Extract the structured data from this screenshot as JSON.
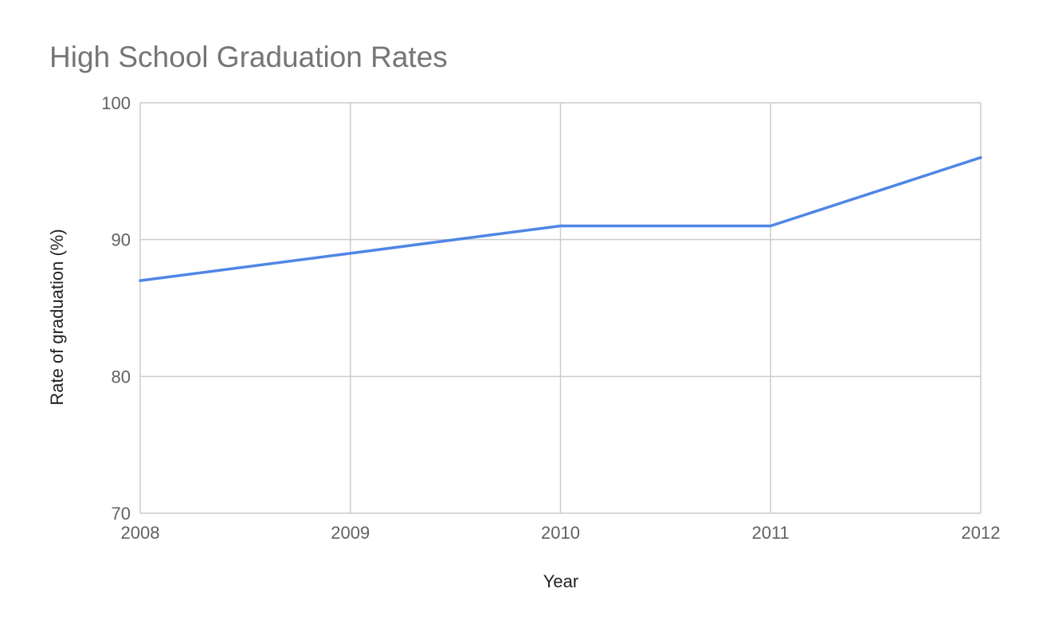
{
  "chart_data": {
    "type": "line",
    "title": "High School Graduation Rates",
    "xlabel": "Year",
    "ylabel": "Rate of graduation (%)",
    "x": [
      "2008",
      "2009",
      "2010",
      "2011",
      "2012"
    ],
    "series": [
      {
        "values": [
          87,
          89,
          91,
          91,
          96
        ],
        "color": "#4f86e6"
      }
    ],
    "ylim": [
      70,
      100
    ],
    "yticks": [
      "70",
      "80",
      "90",
      "100"
    ],
    "grid": true,
    "legend": "none",
    "colors": {
      "gridline": "#cccccc",
      "axis_text": "#616161",
      "title_text": "#757575"
    }
  }
}
